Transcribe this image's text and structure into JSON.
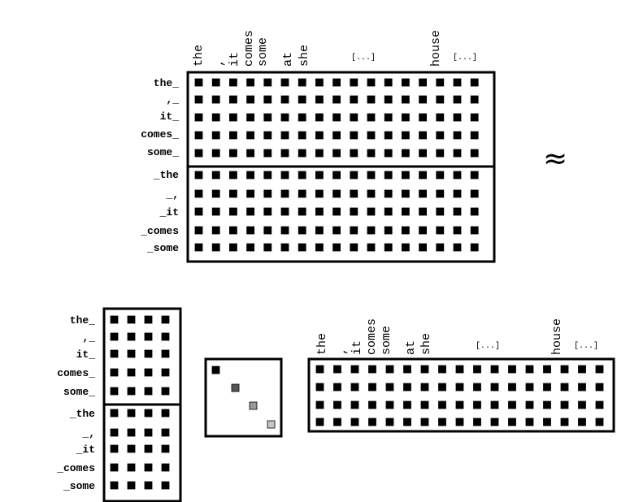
{
  "approx_symbol": "≈",
  "row_labels": [
    "the_",
    ",_",
    "it_",
    "comes_",
    "some_",
    "_the",
    "_,",
    "_it",
    "_comes",
    "_some"
  ],
  "column_words": [
    "the",
    ",",
    "it",
    "comes",
    "some",
    "at",
    "she"
  ],
  "column_ellipsis": "[...]",
  "column_house": "house",
  "matrices": {
    "full_matrix": {
      "rows": 10,
      "cols": 17,
      "divider_after_row": 5
    },
    "left_factor": {
      "rows": 10,
      "cols": 4,
      "divider_after_row": 5
    },
    "diagonal": {
      "size": 4,
      "shades": [
        "#000000",
        "#555555",
        "#999999",
        "#c4c4c4"
      ]
    },
    "right_factor": {
      "rows": 4,
      "cols": 17
    }
  }
}
